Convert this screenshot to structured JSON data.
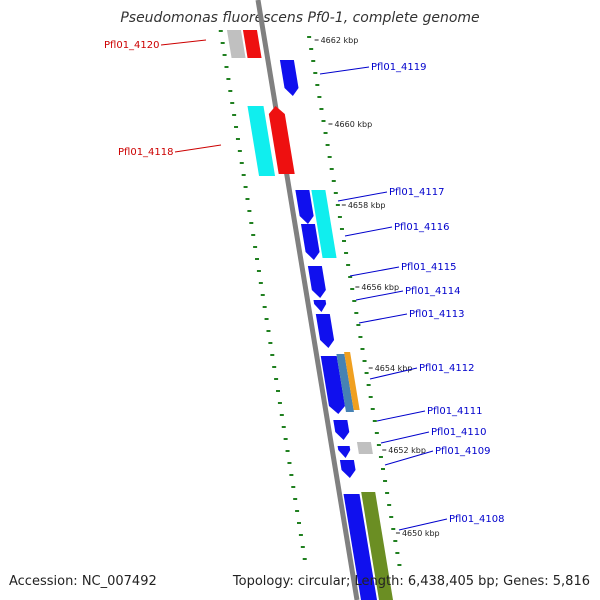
{
  "title": "Pseudomonas fluorescens Pf0-1, complete genome",
  "footer": {
    "accession": "Accession: NC_007492",
    "summary": "Topology: circular; Length: 6,438,405 bp; Genes: 5,816"
  },
  "colors": {
    "backbone": "#808080",
    "cds_forward": "#1010ee",
    "trna": "#ee1010",
    "rrna_grey": "#c0c0c0",
    "cyan": "#10eeee",
    "orange": "#f0a020",
    "steel": "#4682b4",
    "olive": "#6b8e23",
    "dots": "#208020",
    "label_red": "#cc0000",
    "label_blue": "#0000cc"
  },
  "ticks": [
    {
      "label": "4662 kbp"
    },
    {
      "label": "4660 kbp"
    },
    {
      "label": "4658 kbp"
    },
    {
      "label": "4656 kbp"
    },
    {
      "label": "4654 kbp"
    },
    {
      "label": "4652 kbp"
    },
    {
      "label": "4650 kbp"
    }
  ],
  "genes": [
    {
      "label": "Pfl01_4120",
      "side": "left",
      "color": "red"
    },
    {
      "label": "Pfl01_4119",
      "side": "right",
      "color": "blue"
    },
    {
      "label": "Pfl01_4118",
      "side": "left",
      "color": "red"
    },
    {
      "label": "Pfl01_4117",
      "side": "right",
      "color": "blue"
    },
    {
      "label": "Pfl01_4116",
      "side": "right",
      "color": "blue"
    },
    {
      "label": "Pfl01_4115",
      "side": "right",
      "color": "blue"
    },
    {
      "label": "Pfl01_4114",
      "side": "right",
      "color": "blue"
    },
    {
      "label": "Pfl01_4113",
      "side": "right",
      "color": "blue"
    },
    {
      "label": "Pfl01_4112",
      "side": "right",
      "color": "blue"
    },
    {
      "label": "Pfl01_4111",
      "side": "right",
      "color": "blue"
    },
    {
      "label": "Pfl01_4110",
      "side": "right",
      "color": "blue"
    },
    {
      "label": "Pfl01_4109",
      "side": "right",
      "color": "blue"
    },
    {
      "label": "Pfl01_4108",
      "side": "right",
      "color": "blue"
    }
  ]
}
